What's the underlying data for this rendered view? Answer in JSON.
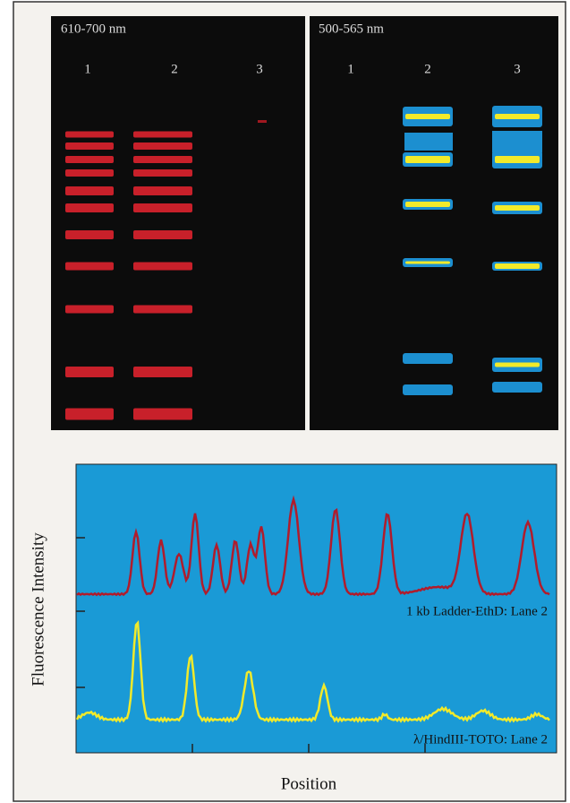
{
  "panels": [
    {
      "label": "610-700 nm",
      "lanes": [
        "1",
        "2",
        "3"
      ]
    },
    {
      "label": "500-565 nm",
      "lanes": [
        "1",
        "2",
        "3"
      ]
    }
  ],
  "plot": {
    "y_label": "Fluorescence Intensity",
    "x_label": "Position",
    "traces": [
      {
        "label": "1 kb Ladder-EthD: Lane 2"
      },
      {
        "label": "λ/HindIII-TOTO: Lane 2"
      }
    ]
  }
}
